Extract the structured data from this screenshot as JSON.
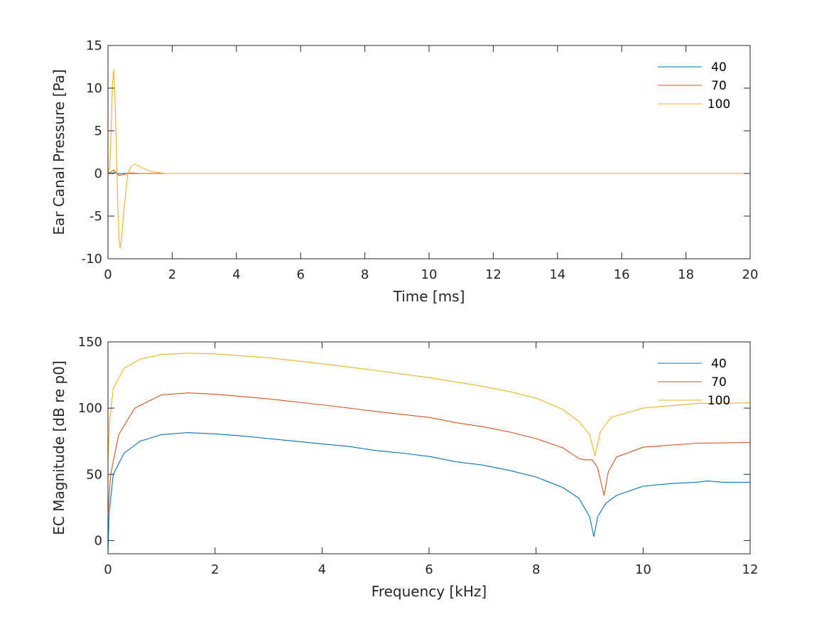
{
  "colors": {
    "40": "#0072BD",
    "70": "#D95319",
    "100": "#EDB120"
  },
  "chart_data": [
    {
      "type": "line",
      "xlabel": "Time [ms]",
      "ylabel": "Ear Canal Pressure [Pa]",
      "xlim": [
        0,
        20
      ],
      "ylim": [
        -10,
        15
      ],
      "xticks": [
        0,
        2,
        4,
        6,
        8,
        10,
        12,
        14,
        16,
        18,
        20
      ],
      "yticks": [
        -10,
        -5,
        0,
        5,
        10,
        15
      ],
      "legend": "top-right",
      "series": [
        {
          "name": "40",
          "x": [
            0,
            0.15,
            0.2,
            0.35,
            0.5,
            0.8,
            20
          ],
          "y": [
            0,
            0.05,
            0.1,
            -0.05,
            0,
            0,
            0
          ]
        },
        {
          "name": "70",
          "x": [
            0,
            0.1,
            0.18,
            0.25,
            0.35,
            0.5,
            0.7,
            1,
            20
          ],
          "y": [
            0,
            0.2,
            0.4,
            0.1,
            -0.25,
            -0.1,
            0.05,
            0,
            0
          ]
        },
        {
          "name": "100",
          "x": [
            0,
            0.06,
            0.1,
            0.14,
            0.18,
            0.22,
            0.26,
            0.3,
            0.34,
            0.38,
            0.42,
            0.48,
            0.55,
            0.62,
            0.7,
            0.82,
            0.95,
            1.1,
            1.3,
            1.5,
            1.8,
            20
          ],
          "y": [
            0,
            1,
            5,
            10.5,
            12.2,
            9,
            3,
            -3,
            -7.5,
            -8.8,
            -7.8,
            -5,
            -2.3,
            0,
            0.7,
            1.1,
            0.9,
            0.6,
            0.3,
            0.12,
            0,
            0
          ]
        }
      ]
    },
    {
      "type": "line",
      "xlabel": "Frequency [kHz]",
      "ylabel": "EC Magnitude [dB re p0]",
      "xlim": [
        0,
        12
      ],
      "ylim": [
        -10,
        150
      ],
      "xticks": [
        0,
        2,
        4,
        6,
        8,
        10,
        12
      ],
      "yticks": [
        0,
        50,
        100,
        150
      ],
      "legend": "top-right",
      "series": [
        {
          "name": "40",
          "x": [
            0,
            0.02,
            0.1,
            0.3,
            0.6,
            1,
            1.5,
            2,
            2.5,
            3,
            3.5,
            4,
            4.5,
            5,
            5.5,
            6,
            6.5,
            7,
            7.5,
            8,
            8.5,
            8.8,
            9,
            9.08,
            9.15,
            9.3,
            9.5,
            10,
            10.5,
            11,
            11.2,
            11.5,
            12
          ],
          "y": [
            -10,
            20,
            50,
            66,
            75,
            80,
            81.5,
            80.5,
            79,
            77,
            75,
            73,
            71,
            68,
            66,
            63.5,
            59.5,
            57,
            53,
            48,
            40,
            32,
            18,
            3,
            18,
            28,
            34,
            41,
            43,
            44,
            45,
            44,
            44
          ]
        },
        {
          "name": "70",
          "x": [
            0,
            0.05,
            0.2,
            0.5,
            1,
            1.5,
            2,
            3,
            4,
            5,
            6,
            6.5,
            7,
            7.5,
            8,
            8.5,
            8.8,
            8.9,
            9.05,
            9.15,
            9.27,
            9.35,
            9.5,
            10,
            11,
            12
          ],
          "y": [
            20,
            50,
            80,
            100,
            110,
            111.5,
            110.5,
            107,
            102.5,
            97.5,
            93,
            89,
            86,
            82,
            77,
            70,
            62,
            61,
            61,
            55,
            34,
            52,
            63,
            70.5,
            73.5,
            74
          ]
        },
        {
          "name": "100",
          "x": [
            0,
            0.03,
            0.1,
            0.3,
            0.6,
            1,
            1.5,
            2,
            3,
            4,
            5,
            6,
            7,
            7.5,
            8,
            8.5,
            8.8,
            9,
            9.1,
            9.2,
            9.4,
            10,
            11,
            12
          ],
          "y": [
            60,
            90,
            115,
            130,
            137,
            140.5,
            141.5,
            141,
            138,
            133.5,
            128.5,
            123,
            116.5,
            112.5,
            107.5,
            99,
            90,
            80,
            64,
            82,
            93,
            100,
            103.5,
            104
          ]
        }
      ]
    }
  ]
}
